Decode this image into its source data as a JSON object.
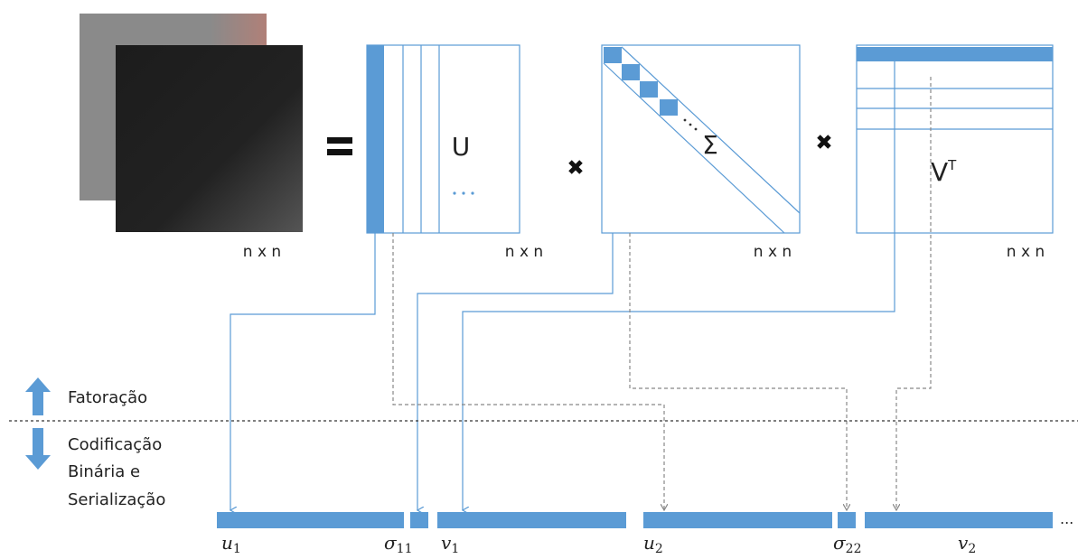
{
  "matrices": {
    "image_size": "n x n",
    "u_size": "n x n",
    "sigma_size": "n x n",
    "vt_size": "n x n",
    "u_label": "U",
    "sigma_label": "Σ",
    "vt_label": {
      "base": "V",
      "superscript": "T"
    }
  },
  "legend": {
    "up": "Fatoração",
    "down": [
      "Codificação",
      "Binária e",
      "Serialização"
    ]
  },
  "serialized": [
    {
      "symbol": "u",
      "subscript": "1"
    },
    {
      "symbol": "σ",
      "subscript": "11"
    },
    {
      "symbol": "v",
      "subscript": "1"
    },
    {
      "symbol": "u",
      "subscript": "2"
    },
    {
      "symbol": "σ",
      "subscript": "22"
    },
    {
      "symbol": "v",
      "subscript": "2"
    }
  ],
  "ellipsis": "..."
}
